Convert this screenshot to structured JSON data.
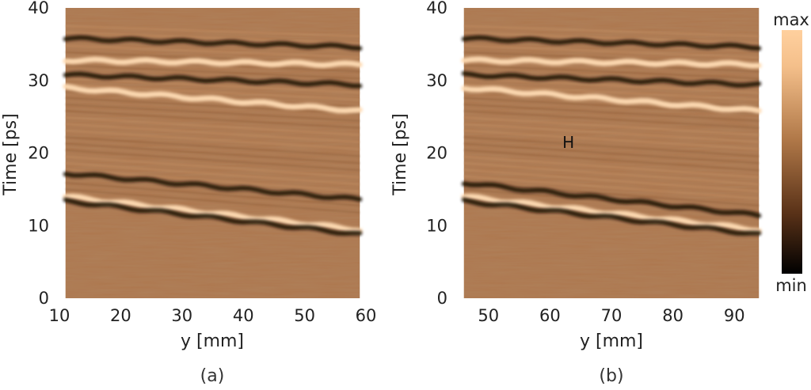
{
  "chart_data": [
    {
      "type": "heatmap",
      "panel_label": "(a)",
      "xlabel": "y [mm]",
      "ylabel": "Time [ps]",
      "xlim": [
        10,
        60
      ],
      "ylim": [
        0,
        40
      ],
      "xticks": [
        "10",
        "20",
        "30",
        "40",
        "50",
        "60"
      ],
      "yticks": [
        "0",
        "10",
        "20",
        "30",
        "40"
      ],
      "data_x_range": [
        11,
        59
      ],
      "bands": [
        {
          "kind": "bright",
          "t_start": 14.0,
          "t_end": 9.4
        },
        {
          "kind": "dark",
          "t_start": 13.4,
          "t_end": 8.8
        },
        {
          "kind": "bright",
          "t_start": 32.8,
          "t_end": 32.2
        },
        {
          "kind": "dark",
          "t_start": 30.8,
          "t_end": 29.4
        },
        {
          "kind": "bright",
          "t_start": 29.0,
          "t_end": 25.8
        },
        {
          "kind": "dark",
          "t_start": 17.2,
          "t_end": 13.6
        },
        {
          "kind": "dark",
          "t_start": 35.8,
          "t_end": 34.6
        }
      ],
      "annotations": []
    },
    {
      "type": "heatmap",
      "panel_label": "(b)",
      "xlabel": "y [mm]",
      "ylabel": "Time [ps]",
      "xlim": [
        45,
        95
      ],
      "ylim": [
        0,
        40
      ],
      "xticks": [
        "50",
        "60",
        "70",
        "80",
        "90"
      ],
      "yticks": [
        "0",
        "10",
        "20",
        "30",
        "40"
      ],
      "data_x_range": [
        46,
        94
      ],
      "bands": [
        {
          "kind": "bright",
          "t_start": 14.0,
          "t_end": 9.4
        },
        {
          "kind": "dark",
          "t_start": 13.4,
          "t_end": 8.8
        },
        {
          "kind": "dark",
          "t_start": 15.9,
          "t_end": 11.4
        },
        {
          "kind": "bright",
          "t_start": 32.8,
          "t_end": 32.2
        },
        {
          "kind": "dark",
          "t_start": 30.8,
          "t_end": 29.4
        },
        {
          "kind": "bright",
          "t_start": 29.0,
          "t_end": 25.8
        },
        {
          "kind": "dark",
          "t_start": 35.8,
          "t_end": 34.6
        }
      ],
      "annotations": [
        {
          "text": "H",
          "x": 63,
          "t": 20.7
        }
      ]
    }
  ],
  "colorbar": {
    "max_label": "max",
    "min_label": "min",
    "colors": [
      "#000000",
      "#5a3218",
      "#b07848",
      "#f4bf8a",
      "#ffd09e"
    ]
  },
  "colors": {
    "background_field": "#ad774e",
    "bright_band": "#ffdcb4",
    "dark_band": "#120a06"
  }
}
